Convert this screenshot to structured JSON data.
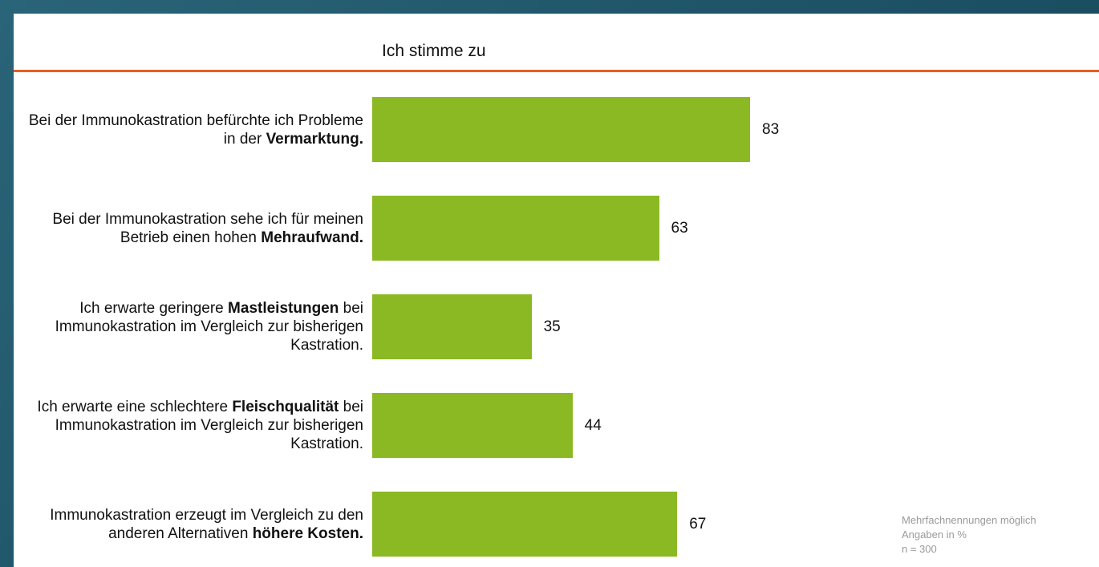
{
  "chart_data": {
    "type": "bar",
    "orientation": "horizontal",
    "title": "Ich stimme zu",
    "color": "#8ab923",
    "categories": [
      [
        {
          "text": "Bei der Immunokastration befürchte ich Probleme in der ",
          "bold": false
        },
        {
          "text": "Vermarktung.",
          "bold": true
        }
      ],
      [
        {
          "text": "Bei der Immunokastration sehe ich für meinen Betrieb einen hohen ",
          "bold": false
        },
        {
          "text": "Mehraufwand.",
          "bold": true
        }
      ],
      [
        {
          "text": "Ich erwarte geringere ",
          "bold": false
        },
        {
          "text": "Mastleistungen",
          "bold": true
        },
        {
          "text": " bei Immunokastration im Vergleich zur bisherigen Kastration.",
          "bold": false
        }
      ],
      [
        {
          "text": "Ich erwarte eine schlechtere ",
          "bold": false
        },
        {
          "text": "Fleischqualität",
          "bold": true
        },
        {
          "text": " bei Immunokastration im Vergleich zur bisherigen Kastration.",
          "bold": false
        }
      ],
      [
        {
          "text": "Immunokastration erzeugt im Vergleich zu den anderen Alternativen ",
          "bold": false
        },
        {
          "text": "höhere Kosten.",
          "bold": true
        }
      ]
    ],
    "values": [
      83,
      63,
      35,
      44,
      67
    ],
    "notes": [
      "Mehrfachnennungen möglich",
      "Angaben in %",
      "n = 300"
    ]
  }
}
